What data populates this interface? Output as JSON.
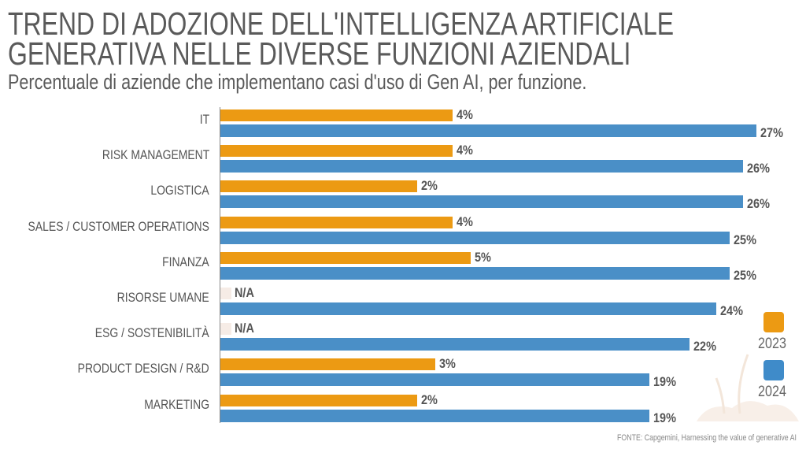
{
  "title_line1": "TREND DI ADOZIONE DELL'INTELLIGENZA ARTIFICIALE",
  "title_line2": "GENERATIVA NELLE DIVERSE FUNZIONI AZIENDALI",
  "subtitle": "Percentuale di aziende che implementano casi d'uso di Gen AI, per funzione.",
  "source": "FONTE: Capgemini, Harnessing the value of generative AI",
  "colors": {
    "y2023": "#ec9a13",
    "y2024": "#4a8fc7",
    "na": "#f6ece6"
  },
  "chart_data": {
    "type": "bar",
    "orientation": "horizontal",
    "title": "TREND DI ADOZIONE DELL'INTELLIGENZA ARTIFICIALE GENERATIVA NELLE DIVERSE FUNZIONI AZIENDALI",
    "categories": [
      "IT",
      "RISK MANAGEMENT",
      "LOGISTICA",
      "SALES / CUSTOMER OPERATIONS",
      "FINANZA",
      "RISORSE UMANE",
      "ESG / SOSTENIBILITÀ",
      "PRODUCT DESIGN / R&D",
      "MARKETING"
    ],
    "series": [
      {
        "name": "2023",
        "values": [
          4,
          4,
          2,
          4,
          5,
          null,
          null,
          3,
          2
        ],
        "labels": [
          "4%",
          "4%",
          "2%",
          "4%",
          "5%",
          "N/A",
          "N/A",
          "3%",
          "2%"
        ]
      },
      {
        "name": "2024",
        "values": [
          27,
          26,
          26,
          25,
          25,
          24,
          22,
          19,
          19
        ],
        "labels": [
          "27%",
          "26%",
          "26%",
          "25%",
          "25%",
          "24%",
          "22%",
          "19%",
          "19%"
        ]
      }
    ],
    "legend": [
      "2023",
      "2024"
    ],
    "legend_position": "right",
    "unit": "%"
  }
}
